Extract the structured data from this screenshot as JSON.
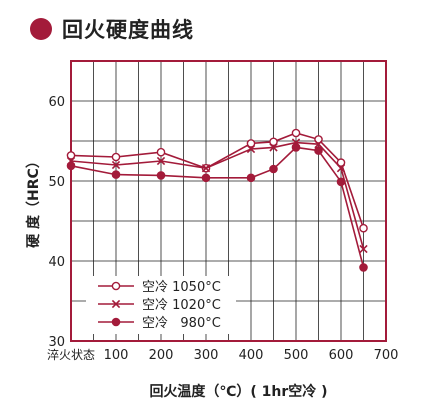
{
  "title": "回火硬度曲线",
  "colors": {
    "accent": "#a31b3a",
    "line": "#a31b3a",
    "text": "#222222"
  },
  "chart_data": {
    "type": "line",
    "title": "回火硬度曲线",
    "xlabel": "回火温度（℃）( 1hr空冷 )",
    "ylabel": "硬 度（HRC）",
    "x_ticks": [
      "淬火状态",
      "100",
      "200",
      "300",
      "400",
      "500",
      "600",
      "700"
    ],
    "x_tick_values": [
      0,
      100,
      200,
      300,
      400,
      500,
      600,
      700
    ],
    "y_ticks": [
      "30",
      "40",
      "50",
      "60"
    ],
    "xlim": [
      0,
      700
    ],
    "ylim": [
      30,
      65
    ],
    "grid": true,
    "legend_position": "bottom-left",
    "series": [
      {
        "name": "空冷 1050°C",
        "marker": "open-circle",
        "points": [
          [
            0,
            53.2
          ],
          [
            100,
            53.0
          ],
          [
            200,
            53.6
          ],
          [
            300,
            51.6
          ],
          [
            400,
            54.7
          ],
          [
            450,
            54.9
          ],
          [
            500,
            56.0
          ],
          [
            550,
            55.2
          ],
          [
            600,
            52.3
          ],
          [
            650,
            44.1
          ]
        ]
      },
      {
        "name": "空冷 1020°C",
        "marker": "cross",
        "points": [
          [
            0,
            52.5
          ],
          [
            100,
            52.0
          ],
          [
            200,
            52.5
          ],
          [
            300,
            51.6
          ],
          [
            400,
            54.0
          ],
          [
            450,
            54.2
          ],
          [
            500,
            54.8
          ],
          [
            550,
            54.6
          ],
          [
            600,
            51.6
          ],
          [
            650,
            41.5
          ]
        ]
      },
      {
        "name": "空冷   980°C",
        "marker": "filled-circle",
        "points": [
          [
            0,
            51.9
          ],
          [
            100,
            50.8
          ],
          [
            200,
            50.7
          ],
          [
            300,
            50.4
          ],
          [
            400,
            50.4
          ],
          [
            450,
            51.5
          ],
          [
            500,
            54.2
          ],
          [
            550,
            53.8
          ],
          [
            600,
            49.9
          ],
          [
            650,
            39.2
          ]
        ]
      }
    ]
  }
}
